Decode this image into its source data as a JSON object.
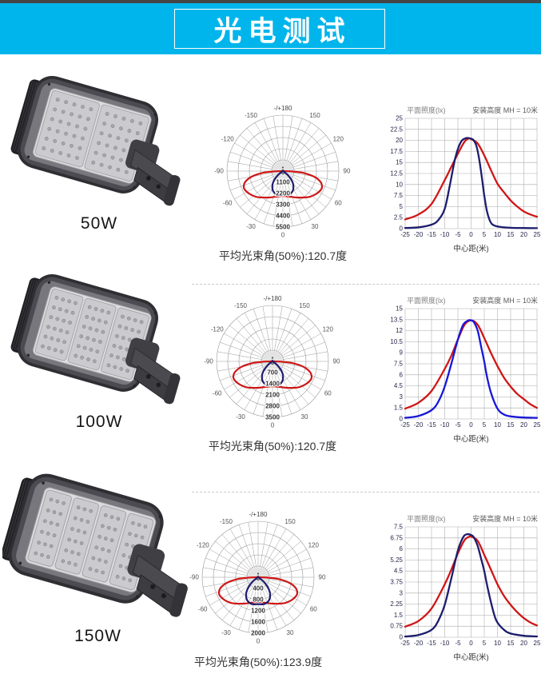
{
  "header": {
    "title": "光电测试"
  },
  "colors": {
    "banner_bg": "#00b5ec",
    "red_curve": "#cf1616",
    "navy_curve": "#1d1d6e",
    "blue_curve": "#1717d8",
    "grid": "#a9a9a9",
    "separator": "#c9c9c9"
  },
  "products": [
    {
      "label": "50W",
      "modules": 2
    },
    {
      "label": "100W",
      "modules": 3
    },
    {
      "label": "150W",
      "modules": 4
    }
  ],
  "chart_data": [
    {
      "kind": "polar",
      "type": "polar",
      "product": "50W",
      "top_label": "-/+180",
      "center_label": "0",
      "bottom_angle_label": "0",
      "angle_labels": [
        [
          -150,
          "-150"
        ],
        [
          150,
          "150"
        ],
        [
          -120,
          "-120"
        ],
        [
          120,
          "120"
        ],
        [
          -90,
          "-90"
        ],
        [
          90,
          "90"
        ],
        [
          -60,
          "-60"
        ],
        [
          60,
          "60"
        ],
        [
          -30,
          "-30"
        ],
        [
          30,
          "30"
        ],
        [
          0,
          "0"
        ]
      ],
      "ring_values": [
        1100,
        2200,
        3300,
        4400,
        5500
      ],
      "rmax": 5500,
      "caption": "平均光束角(50%):120.7度",
      "series": [
        {
          "name": "wide-red-lobe",
          "color": "#cf1616",
          "points": [
            [
              0,
              2450
            ],
            [
              15,
              2600
            ],
            [
              30,
              3000
            ],
            [
              45,
              3600
            ],
            [
              55,
              3950
            ],
            [
              63,
              4150
            ],
            [
              68,
              4150
            ],
            [
              74,
              3850
            ],
            [
              80,
              3100
            ],
            [
              85,
              2000
            ],
            [
              88,
              900
            ],
            [
              90,
              0
            ]
          ]
        },
        {
          "name": "narrow-navy-lobe",
          "color": "#1d1d6e",
          "points": [
            [
              0,
              2330
            ],
            [
              12,
              2380
            ],
            [
              22,
              2280
            ],
            [
              30,
              2050
            ],
            [
              38,
              1650
            ],
            [
              45,
              1150
            ],
            [
              51,
              650
            ],
            [
              56,
              250
            ],
            [
              60,
              0
            ]
          ]
        }
      ]
    },
    {
      "kind": "line",
      "type": "line",
      "product": "50W",
      "title": "平面照度(lx)",
      "subtitle": "安装高度 MH = 10米",
      "xlabel": "中心距(米)",
      "xlim": [
        -25,
        25
      ],
      "ylim": [
        0,
        25
      ],
      "x_ticks": [
        -25,
        -20,
        -15,
        -10,
        -5,
        0,
        5,
        10,
        15,
        20,
        25
      ],
      "y_ticks": [
        0,
        2.5,
        5,
        7.5,
        10,
        12.5,
        15,
        17.5,
        20,
        22.5,
        25
      ],
      "series": [
        {
          "name": "wide-red",
          "color": "#cf1616",
          "points": [
            [
              -25,
              2.1
            ],
            [
              -20,
              3.2
            ],
            [
              -15,
              5.6
            ],
            [
              -10,
              11
            ],
            [
              -7.5,
              14
            ],
            [
              -5,
              17
            ],
            [
              -2.5,
              19.7
            ],
            [
              -1,
              20.4
            ],
            [
              0,
              20.3
            ],
            [
              2.5,
              19.3
            ],
            [
              5,
              16.6
            ],
            [
              7.5,
              13.3
            ],
            [
              10,
              10.2
            ],
            [
              12.5,
              8.2
            ],
            [
              15,
              6.4
            ],
            [
              17.5,
              5
            ],
            [
              20,
              3.9
            ],
            [
              22.5,
              3.2
            ],
            [
              25,
              2.7
            ]
          ]
        },
        {
          "name": "narrow-navy",
          "color": "#1d1d6e",
          "points": [
            [
              -25,
              0.15
            ],
            [
              -20,
              0.3
            ],
            [
              -15,
              0.9
            ],
            [
              -12.5,
              1.9
            ],
            [
              -10,
              4.5
            ],
            [
              -8,
              10
            ],
            [
              -6,
              16
            ],
            [
              -4,
              19.5
            ],
            [
              -2,
              20.5
            ],
            [
              0,
              20.4
            ],
            [
              1,
              20
            ],
            [
              2,
              18.8
            ],
            [
              3,
              16
            ],
            [
              4,
              12
            ],
            [
              5,
              7.5
            ],
            [
              6,
              4
            ],
            [
              7,
              2
            ],
            [
              8,
              1
            ],
            [
              10,
              0.5
            ],
            [
              15,
              0.2
            ],
            [
              20,
              0.15
            ],
            [
              25,
              0.1
            ]
          ]
        }
      ]
    },
    {
      "kind": "polar",
      "type": "polar",
      "product": "100W",
      "top_label": "-/+180",
      "center_label": "0",
      "bottom_angle_label": "0",
      "angle_labels": [
        [
          -150,
          "-150"
        ],
        [
          150,
          "150"
        ],
        [
          -120,
          "-120"
        ],
        [
          120,
          "120"
        ],
        [
          -90,
          "-90"
        ],
        [
          90,
          "90"
        ],
        [
          -60,
          "-60"
        ],
        [
          60,
          "60"
        ],
        [
          -30,
          "-30"
        ],
        [
          30,
          "30"
        ],
        [
          0,
          "0"
        ]
      ],
      "ring_values": [
        700,
        1400,
        2100,
        2800,
        3500
      ],
      "rmax": 3500,
      "caption": "平均光束角(50%):120.7度",
      "series": [
        {
          "name": "wide-red-lobe",
          "color": "#cf1616",
          "points": [
            [
              0,
              1560
            ],
            [
              15,
              1650
            ],
            [
              30,
              1910
            ],
            [
              45,
              2290
            ],
            [
              55,
              2510
            ],
            [
              63,
              2640
            ],
            [
              68,
              2640
            ],
            [
              74,
              2450
            ],
            [
              80,
              1970
            ],
            [
              85,
              1270
            ],
            [
              88,
              570
            ],
            [
              90,
              0
            ]
          ]
        },
        {
          "name": "narrow-navy-lobe",
          "color": "#1d1d6e",
          "points": [
            [
              0,
              1480
            ],
            [
              12,
              1515
            ],
            [
              22,
              1450
            ],
            [
              30,
              1300
            ],
            [
              38,
              1050
            ],
            [
              45,
              730
            ],
            [
              51,
              410
            ],
            [
              56,
              160
            ],
            [
              60,
              0
            ]
          ]
        }
      ]
    },
    {
      "kind": "line",
      "type": "line",
      "product": "100W",
      "title": "平面照度(lx)",
      "subtitle": "安装高度 MH = 10米",
      "xlabel": "中心距(米)",
      "xlim": [
        -25,
        25
      ],
      "ylim": [
        0,
        15
      ],
      "x_ticks": [
        -25,
        -20,
        -15,
        -10,
        -5,
        0,
        5,
        10,
        15,
        20,
        25
      ],
      "y_ticks": [
        0,
        1.5,
        3,
        4.5,
        6,
        7.5,
        9,
        10.5,
        12,
        13.5,
        15
      ],
      "series": [
        {
          "name": "wide-red",
          "color": "#cf1616",
          "points": [
            [
              -25,
              1.4
            ],
            [
              -20,
              2.2
            ],
            [
              -15,
              3.8
            ],
            [
              -10,
              6.8
            ],
            [
              -7.5,
              8.6
            ],
            [
              -5,
              10.8
            ],
            [
              -2.5,
              12.8
            ],
            [
              0,
              13.4
            ],
            [
              2.5,
              12.8
            ],
            [
              5,
              11
            ],
            [
              7.5,
              9
            ],
            [
              10,
              7.2
            ],
            [
              12.5,
              5.6
            ],
            [
              15,
              4.4
            ],
            [
              17.5,
              3.4
            ],
            [
              20,
              2.7
            ],
            [
              22.5,
              2
            ],
            [
              25,
              1.5
            ]
          ]
        },
        {
          "name": "narrow-blue",
          "color": "#1717d8",
          "points": [
            [
              -25,
              0.15
            ],
            [
              -20,
              0.4
            ],
            [
              -15,
              1.2
            ],
            [
              -12.5,
              2.3
            ],
            [
              -10,
              4.4
            ],
            [
              -7.5,
              7.5
            ],
            [
              -5,
              10.8
            ],
            [
              -3,
              12.8
            ],
            [
              -1,
              13.4
            ],
            [
              0,
              13.4
            ],
            [
              1,
              13.2
            ],
            [
              2.5,
              12
            ],
            [
              4,
              9.5
            ],
            [
              5,
              7.8
            ],
            [
              6,
              5.8
            ],
            [
              7.5,
              3.6
            ],
            [
              10,
              1.4
            ],
            [
              12.5,
              0.6
            ],
            [
              15,
              0.35
            ],
            [
              20,
              0.2
            ],
            [
              25,
              0.15
            ]
          ]
        }
      ]
    },
    {
      "kind": "polar",
      "type": "polar",
      "product": "150W",
      "top_label": "-/+180",
      "center_label": "0",
      "bottom_angle_label": "0",
      "angle_labels": [
        [
          -150,
          "-150"
        ],
        [
          150,
          "150"
        ],
        [
          -120,
          "-120"
        ],
        [
          120,
          "120"
        ],
        [
          -90,
          "-90"
        ],
        [
          90,
          "90"
        ],
        [
          -60,
          "-60"
        ],
        [
          60,
          "60"
        ],
        [
          -30,
          "-30"
        ],
        [
          30,
          "30"
        ],
        [
          0,
          "0"
        ]
      ],
      "ring_values": [
        400,
        800,
        1200,
        1600,
        2000
      ],
      "rmax": 2000,
      "caption": "平均光束角(50%):123.9度",
      "series": [
        {
          "name": "wide-red-lobe",
          "color": "#cf1616",
          "points": [
            [
              0,
              880
            ],
            [
              15,
              940
            ],
            [
              30,
              1090
            ],
            [
              45,
              1310
            ],
            [
              55,
              1440
            ],
            [
              63,
              1510
            ],
            [
              68,
              1510
            ],
            [
              74,
              1400
            ],
            [
              80,
              1130
            ],
            [
              85,
              730
            ],
            [
              88,
              330
            ],
            [
              90,
              0
            ]
          ]
        },
        {
          "name": "narrow-navy-lobe",
          "color": "#1d1d6e",
          "points": [
            [
              0,
              960
            ],
            [
              12,
              985
            ],
            [
              22,
              940
            ],
            [
              30,
              845
            ],
            [
              38,
              680
            ],
            [
              45,
              470
            ],
            [
              51,
              265
            ],
            [
              56,
              100
            ],
            [
              60,
              0
            ]
          ]
        }
      ]
    },
    {
      "kind": "line",
      "type": "line",
      "product": "150W",
      "title": "平面照度(lx)",
      "subtitle": "安装高度 MH = 10米",
      "xlabel": "中心距(米)",
      "xlim": [
        -25,
        25
      ],
      "ylim": [
        0,
        7.5
      ],
      "x_ticks": [
        -25,
        -20,
        -15,
        -10,
        -5,
        0,
        5,
        10,
        15,
        20,
        25
      ],
      "y_ticks": [
        0,
        0.75,
        1.5,
        2.25,
        3,
        3.75,
        4.5,
        5.25,
        6,
        6.75,
        7.5
      ],
      "series": [
        {
          "name": "wide-red",
          "color": "#cf1616",
          "points": [
            [
              -25,
              0.72
            ],
            [
              -20,
              1.1
            ],
            [
              -15,
              1.95
            ],
            [
              -10,
              3.6
            ],
            [
              -7.5,
              4.6
            ],
            [
              -5,
              5.7
            ],
            [
              -2.5,
              6.6
            ],
            [
              -0.5,
              6.85
            ],
            [
              0,
              6.85
            ],
            [
              2.5,
              6.55
            ],
            [
              5,
              5.6
            ],
            [
              7.5,
              4.6
            ],
            [
              10,
              3.6
            ],
            [
              12.5,
              2.8
            ],
            [
              15,
              2.2
            ],
            [
              17.5,
              1.7
            ],
            [
              20,
              1.3
            ],
            [
              22.5,
              1
            ],
            [
              25,
              0.8
            ]
          ]
        },
        {
          "name": "narrow-navy",
          "color": "#1d1d6e",
          "points": [
            [
              -25,
              0.05
            ],
            [
              -20,
              0.15
            ],
            [
              -15,
              0.5
            ],
            [
              -12.5,
              1.1
            ],
            [
              -10,
              2.2
            ],
            [
              -7.5,
              4
            ],
            [
              -5,
              5.9
            ],
            [
              -3,
              6.8
            ],
            [
              -1.5,
              7.0
            ],
            [
              0,
              6.95
            ],
            [
              1,
              6.8
            ],
            [
              2.5,
              6.2
            ],
            [
              4,
              5.2
            ],
            [
              5,
              4.5
            ],
            [
              6,
              3.6
            ],
            [
              7.5,
              2.4
            ],
            [
              9,
              1.4
            ],
            [
              10,
              1
            ],
            [
              12.5,
              0.5
            ],
            [
              15,
              0.25
            ],
            [
              20,
              0.1
            ],
            [
              25,
              0.05
            ]
          ]
        }
      ]
    }
  ]
}
